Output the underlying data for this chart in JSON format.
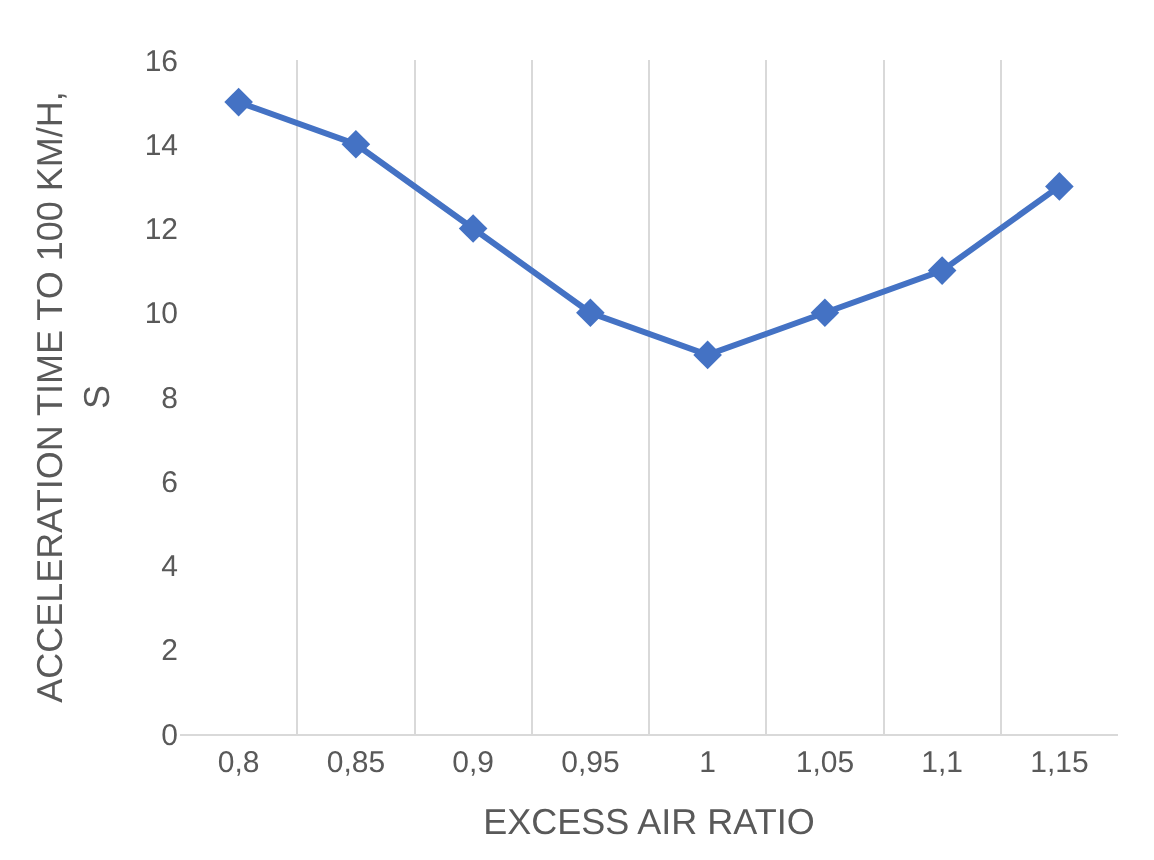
{
  "chart_data": {
    "type": "line",
    "xlabel": "EXCESS AIR RATIO",
    "ylabel": "ACCELERATION TIME TO 100 KM/H, S",
    "categories": [
      "0,8",
      "0,85",
      "0,9",
      "0,95",
      "1",
      "1,05",
      "1,1",
      "1,15"
    ],
    "series": [
      {
        "color": "#4472c4",
        "values": [
          15,
          14,
          12,
          10,
          9,
          10,
          11,
          13
        ]
      }
    ],
    "ylim": [
      0,
      16
    ],
    "yticks": [
      0,
      2,
      4,
      6,
      8,
      10,
      12,
      14,
      16
    ],
    "grid": "x",
    "marker": "diamond",
    "line_style": "solid"
  }
}
